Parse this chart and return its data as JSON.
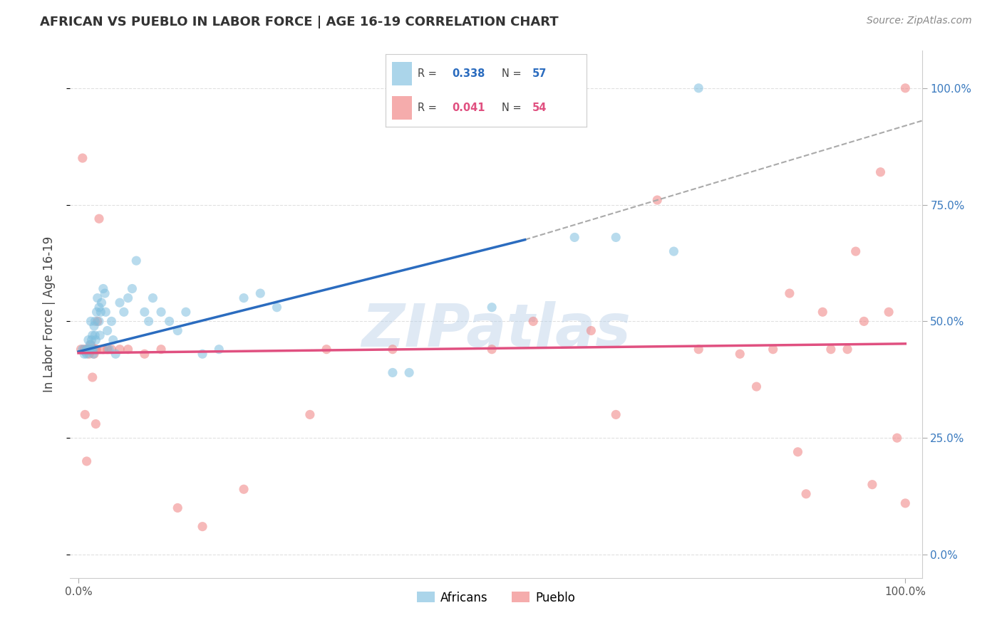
{
  "title": "AFRICAN VS PUEBLO IN LABOR FORCE | AGE 16-19 CORRELATION CHART",
  "source": "Source: ZipAtlas.com",
  "ylabel": "In Labor Force | Age 16-19",
  "xlim": [
    -0.01,
    1.02
  ],
  "ylim": [
    -0.05,
    1.08
  ],
  "ytick_positions": [
    0.0,
    0.25,
    0.5,
    0.75,
    1.0
  ],
  "ytick_labels": [
    "0.0%",
    "25.0%",
    "50.0%",
    "75.0%",
    "100.0%"
  ],
  "xtick_positions": [
    0.0,
    1.0
  ],
  "xtick_labels": [
    "0.0%",
    "100.0%"
  ],
  "africans_color": "#7fbfdf",
  "pueblo_color": "#f08080",
  "africans_R": 0.338,
  "africans_N": 57,
  "pueblo_R": 0.041,
  "pueblo_N": 54,
  "blue_line_x": [
    0.0,
    0.54
  ],
  "blue_line_y": [
    0.435,
    0.675
  ],
  "pink_line_x": [
    0.0,
    1.0
  ],
  "pink_line_y": [
    0.432,
    0.452
  ],
  "dash_line_x": [
    0.54,
    1.02
  ],
  "dash_line_y": [
    0.675,
    0.93
  ],
  "watermark_text": "ZIPatlas",
  "background_color": "#ffffff",
  "grid_color": "#e0e0e0",
  "africans_x": [
    0.005,
    0.007,
    0.008,
    0.01,
    0.01,
    0.012,
    0.013,
    0.014,
    0.015,
    0.016,
    0.016,
    0.017,
    0.018,
    0.018,
    0.019,
    0.02,
    0.02,
    0.021,
    0.022,
    0.023,
    0.025,
    0.025,
    0.026,
    0.027,
    0.028,
    0.03,
    0.032,
    0.033,
    0.035,
    0.037,
    0.04,
    0.042,
    0.045,
    0.05,
    0.055,
    0.06,
    0.065,
    0.07,
    0.08,
    0.085,
    0.09,
    0.1,
    0.11,
    0.12,
    0.13,
    0.15,
    0.17,
    0.2,
    0.22,
    0.24,
    0.38,
    0.4,
    0.5,
    0.6,
    0.65,
    0.72,
    0.75
  ],
  "africans_y": [
    0.44,
    0.43,
    0.435,
    0.44,
    0.43,
    0.46,
    0.44,
    0.45,
    0.5,
    0.46,
    0.44,
    0.47,
    0.44,
    0.43,
    0.49,
    0.47,
    0.5,
    0.46,
    0.52,
    0.55,
    0.53,
    0.5,
    0.47,
    0.52,
    0.54,
    0.57,
    0.56,
    0.52,
    0.48,
    0.44,
    0.5,
    0.46,
    0.43,
    0.54,
    0.52,
    0.55,
    0.57,
    0.63,
    0.52,
    0.5,
    0.55,
    0.52,
    0.5,
    0.48,
    0.52,
    0.43,
    0.44,
    0.55,
    0.56,
    0.53,
    0.39,
    0.39,
    0.53,
    0.68,
    0.68,
    0.65,
    1.0
  ],
  "pueblo_x": [
    0.003,
    0.005,
    0.007,
    0.008,
    0.01,
    0.01,
    0.012,
    0.013,
    0.015,
    0.016,
    0.017,
    0.018,
    0.019,
    0.02,
    0.021,
    0.022,
    0.023,
    0.025,
    0.03,
    0.035,
    0.04,
    0.05,
    0.06,
    0.08,
    0.1,
    0.12,
    0.15,
    0.2,
    0.28,
    0.3,
    0.38,
    0.5,
    0.55,
    0.62,
    0.65,
    0.7,
    0.75,
    0.8,
    0.82,
    0.84,
    0.86,
    0.87,
    0.88,
    0.9,
    0.91,
    0.93,
    0.94,
    0.95,
    0.96,
    0.97,
    0.98,
    0.99,
    1.0,
    1.0
  ],
  "pueblo_y": [
    0.44,
    0.85,
    0.44,
    0.3,
    0.44,
    0.2,
    0.44,
    0.43,
    0.45,
    0.44,
    0.38,
    0.44,
    0.43,
    0.44,
    0.28,
    0.44,
    0.5,
    0.72,
    0.44,
    0.44,
    0.44,
    0.44,
    0.44,
    0.43,
    0.44,
    0.1,
    0.06,
    0.14,
    0.3,
    0.44,
    0.44,
    0.44,
    0.5,
    0.48,
    0.3,
    0.76,
    0.44,
    0.43,
    0.36,
    0.44,
    0.56,
    0.22,
    0.13,
    0.52,
    0.44,
    0.44,
    0.65,
    0.5,
    0.15,
    0.82,
    0.52,
    0.25,
    0.11,
    1.0
  ]
}
